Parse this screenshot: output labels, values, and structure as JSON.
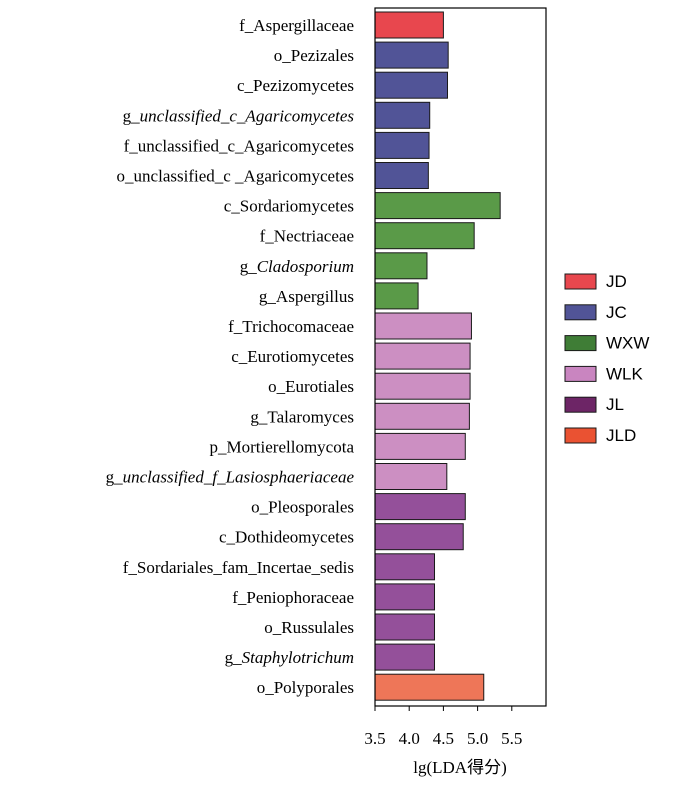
{
  "chart_data": {
    "type": "bar",
    "orientation": "horizontal",
    "xlabel": "lg(LDA得分)",
    "xlim": [
      3.5,
      6.0
    ],
    "xticks": [
      3.5,
      4.0,
      4.5,
      5.0,
      5.5
    ],
    "xtick_labels": [
      "3.5",
      "4.0",
      "4.5",
      "5.0",
      "5.5"
    ],
    "grid": false,
    "legend_position": "right",
    "groups": [
      {
        "name": "JD",
        "color": "#e8474e"
      },
      {
        "name": "JC",
        "color": "#515497"
      },
      {
        "name": "WXW",
        "color": "#5a9a48"
      },
      {
        "name": "WLK",
        "color": "#cc8fc2"
      },
      {
        "name": "JL",
        "color": "#94509a"
      },
      {
        "name": "JLD",
        "color": "#ee7658"
      }
    ],
    "bars": [
      {
        "label": "f_Aspergillaceae",
        "prefix": "f_Aspergillaceae",
        "italic": "",
        "value": 4.5,
        "group": "JD"
      },
      {
        "label": "o_Pezizales",
        "prefix": "o_Pezizales",
        "italic": "",
        "value": 4.57,
        "group": "JC"
      },
      {
        "label": "c_Pezizomycetes",
        "prefix": "c_Pezizomycetes",
        "italic": "",
        "value": 4.56,
        "group": "JC"
      },
      {
        "label": "g_unclassified_c_Agaricomycetes",
        "prefix": "g_",
        "italic": "unclassified_c_Agaricomycetes",
        "value": 4.3,
        "group": "JC"
      },
      {
        "label": "f_unclassified_c_Agaricomycetes",
        "prefix": "f_unclassified_c_Agaricomycetes",
        "italic": "",
        "value": 4.29,
        "group": "JC"
      },
      {
        "label": "o_unclassified_c _Agaricomycetes",
        "prefix": "o_unclassified_c _Agaricomycetes",
        "italic": "",
        "value": 4.28,
        "group": "JC"
      },
      {
        "label": "c_Sordariomycetes",
        "prefix": "c_Sordariomycetes",
        "italic": "",
        "value": 5.33,
        "group": "WXW"
      },
      {
        "label": "f_Nectriaceae",
        "prefix": "f_Nectriaceae",
        "italic": "",
        "value": 4.95,
        "group": "WXW"
      },
      {
        "label": "g_Cladosporium",
        "prefix": "g_",
        "italic": "Cladosporium",
        "value": 4.26,
        "group": "WXW"
      },
      {
        "label": "g_Aspergillus",
        "prefix": "g_Aspergillus",
        "italic": "",
        "value": 4.13,
        "group": "WXW"
      },
      {
        "label": "f_Trichocomaceae",
        "prefix": "f_Trichocomaceae",
        "italic": "",
        "value": 4.91,
        "group": "WLK"
      },
      {
        "label": "c_Eurotiomycetes",
        "prefix": "c_Eurotiomycetes",
        "italic": "",
        "value": 4.89,
        "group": "WLK"
      },
      {
        "label": "o_Eurotiales",
        "prefix": "o_Eurotiales",
        "italic": "",
        "value": 4.89,
        "group": "WLK"
      },
      {
        "label": "g_Talaromyces",
        "prefix": "g_Talaromyces",
        "italic": "",
        "value": 4.88,
        "group": "WLK"
      },
      {
        "label": "p_Mortierellomycota",
        "prefix": "p_Mortierellomycota",
        "italic": "",
        "value": 4.82,
        "group": "WLK"
      },
      {
        "label": "g_unclassified_f_Lasiosphaeriaceae",
        "prefix": "g_",
        "italic": "unclassified_f_Lasiosphaeriaceae",
        "value": 4.55,
        "group": "WLK"
      },
      {
        "label": "o_Pleosporales",
        "prefix": "o_Pleosporales",
        "italic": "",
        "value": 4.82,
        "group": "JL"
      },
      {
        "label": "c_Dothideomycetes",
        "prefix": "c_Dothideomycetes",
        "italic": "",
        "value": 4.79,
        "group": "JL"
      },
      {
        "label": "f_Sordariales_fam_Incertae_sedis",
        "prefix": "f_Sordariales_fam_Incertae_sedis",
        "italic": "",
        "value": 4.37,
        "group": "JL"
      },
      {
        "label": "f_Peniophoraceae",
        "prefix": "f_Peniophoraceae",
        "italic": "",
        "value": 4.37,
        "group": "JL"
      },
      {
        "label": "o_Russulales",
        "prefix": "o_Russulales",
        "italic": "",
        "value": 4.37,
        "group": "JL"
      },
      {
        "label": "g_Staphylotrichum",
        "prefix": "g_",
        "italic": "Staphylotrichum",
        "value": 4.37,
        "group": "JL"
      },
      {
        "label": "o_Polyporales",
        "prefix": "o_Polyporales",
        "italic": "",
        "value": 5.09,
        "group": "JLD"
      }
    ],
    "bar_colors": {
      "JD": "#e8474e",
      "JC": "#515497",
      "WXW": "#5a9a48",
      "WLK": "#cc8fc2",
      "JL": "#94509a",
      "JLD": "#ee7658"
    },
    "legend_swatch_colors": {
      "JD": "#e8474e",
      "JC": "#515497",
      "WXW": "#3f7d36",
      "WLK": "#c985c0",
      "JL": "#6d2566",
      "JLD": "#ea5232"
    }
  }
}
